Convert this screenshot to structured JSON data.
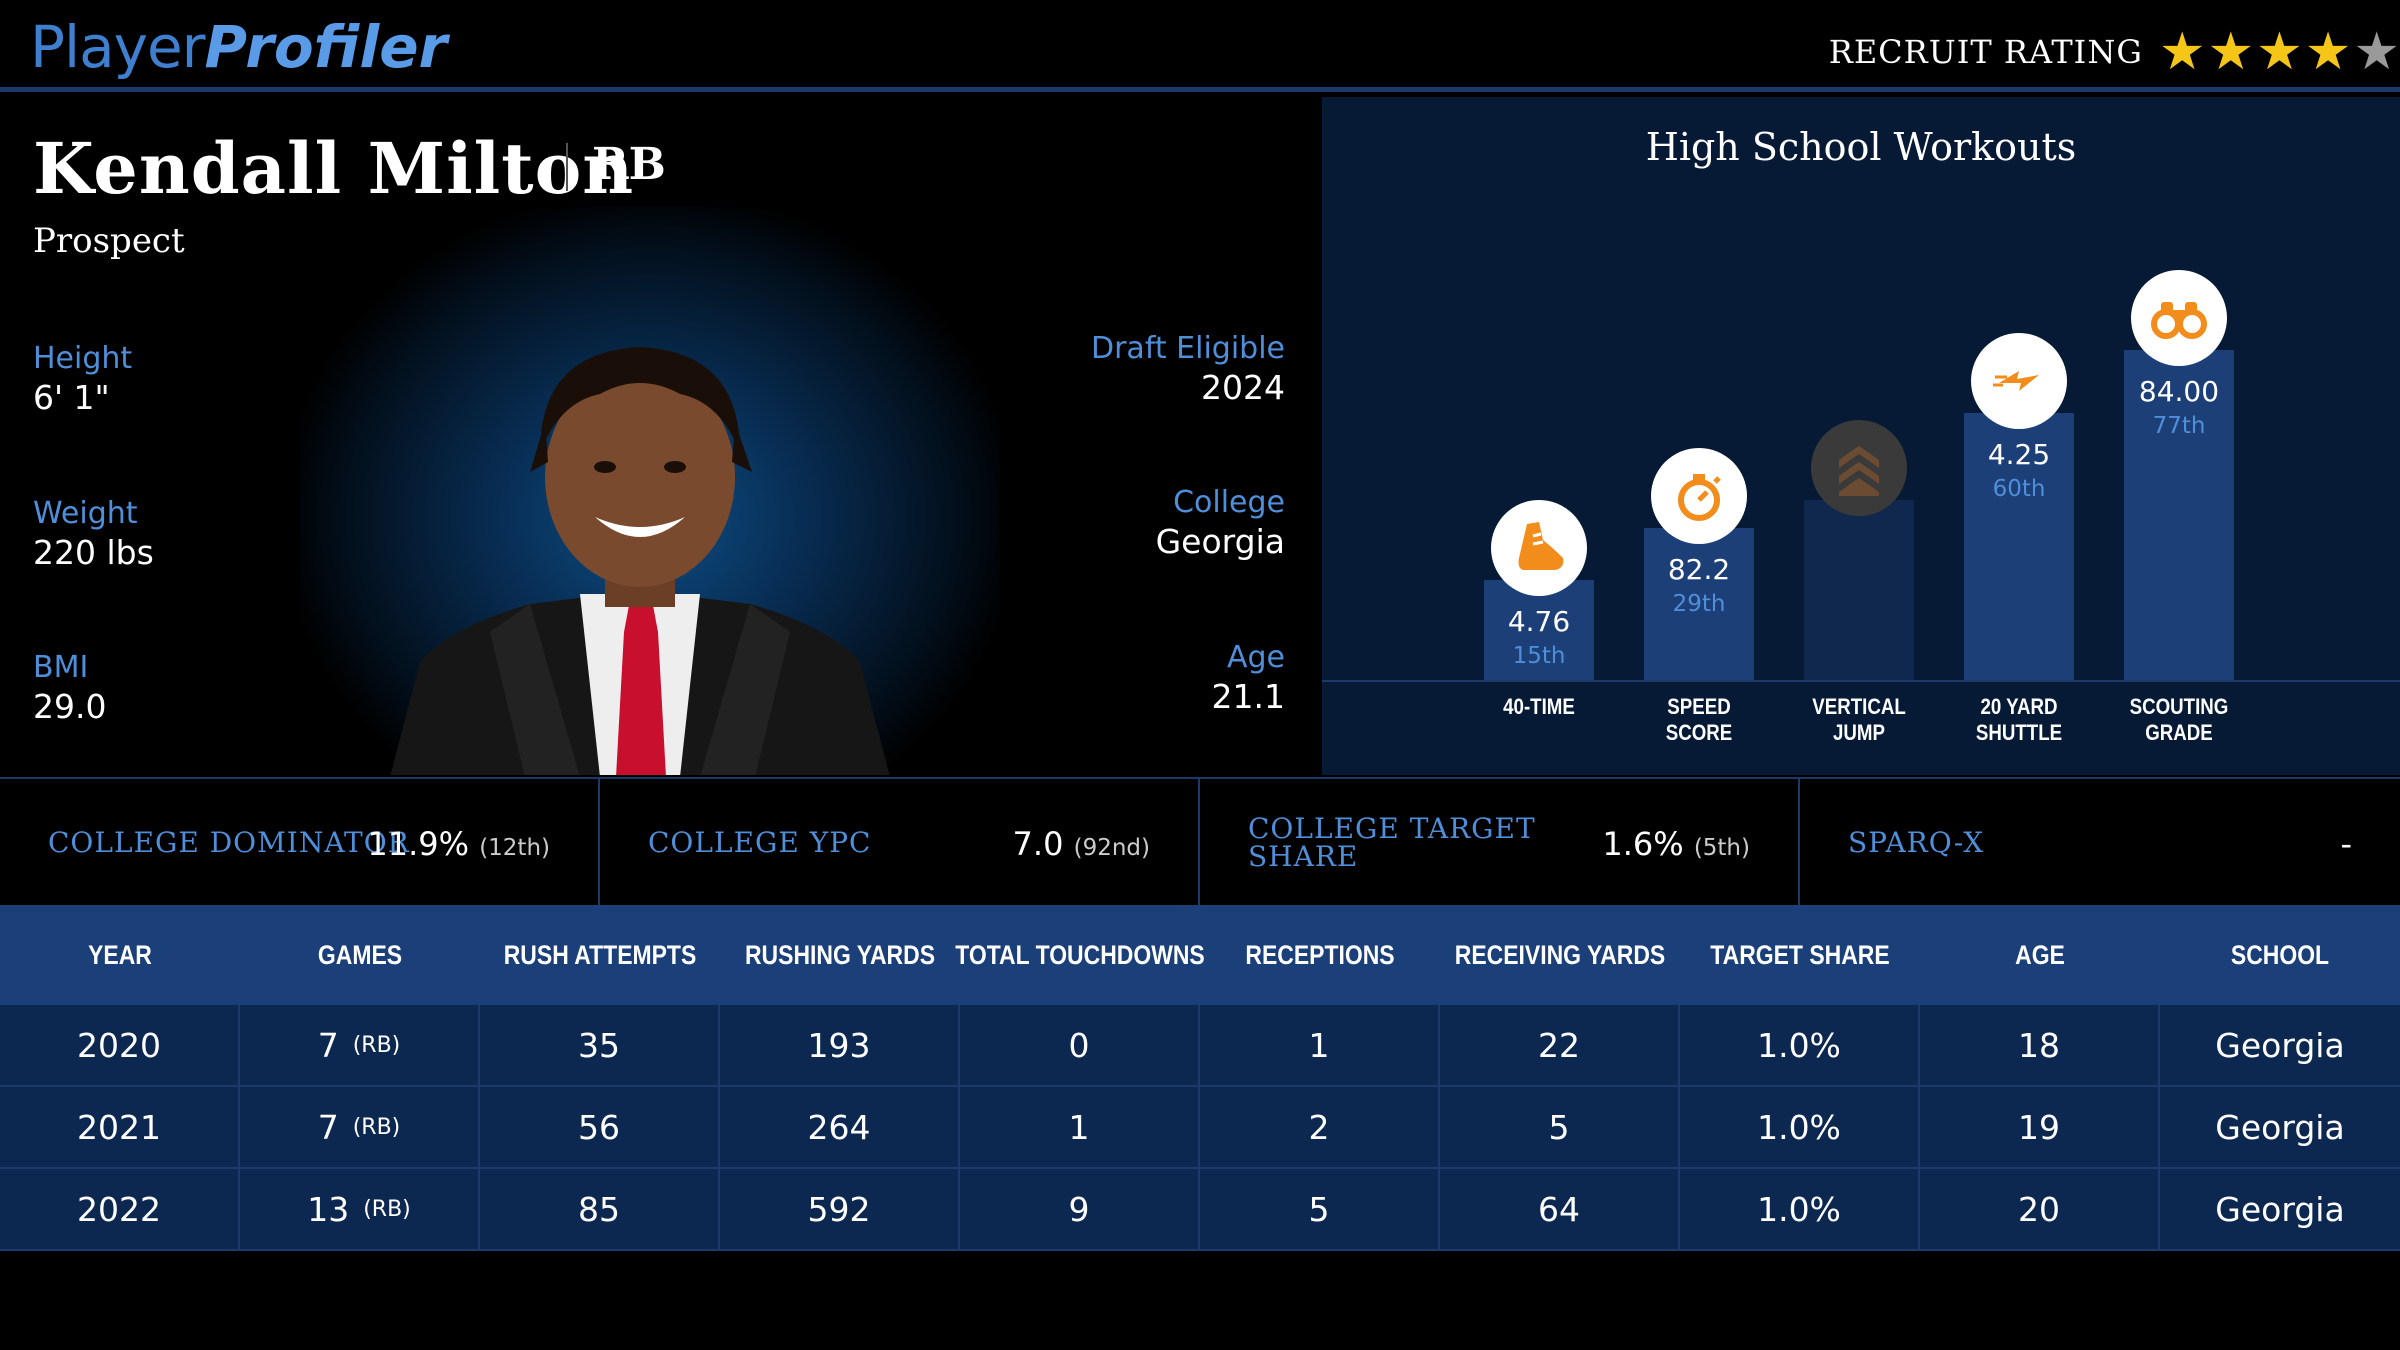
{
  "header": {
    "logo_part1": "Player",
    "logo_part2": "Profiler",
    "recruit_label": "RECRUIT RATING",
    "recruit_stars": 4,
    "recruit_stars_max": 5
  },
  "player": {
    "name": "Kendall Milton",
    "position": "RB",
    "status": "Prospect",
    "height_label": "Height",
    "height": "6' 1\"",
    "weight_label": "Weight",
    "weight": "220 lbs",
    "bmi_label": "BMI",
    "bmi": "29.0",
    "draft_label": "Draft Eligible",
    "draft": "2024",
    "college_label": "College",
    "college": "Georgia",
    "age_label": "Age",
    "age": "21.1"
  },
  "workouts": {
    "title": "High School Workouts",
    "items": [
      {
        "label1": "40-TIME",
        "label2": "",
        "value": "4.76",
        "pct": "15th",
        "percentile": 15,
        "icon": "shoe-icon"
      },
      {
        "label1": "SPEED",
        "label2": "SCORE",
        "value": "82.2",
        "pct": "29th",
        "percentile": 29,
        "icon": "stopwatch-icon"
      },
      {
        "label1": "VERTICAL",
        "label2": "JUMP",
        "value": "",
        "pct": "",
        "percentile": 0,
        "icon": "chevrons-up-icon"
      },
      {
        "label1": "20 YARD",
        "label2": "SHUTTLE",
        "value": "4.25",
        "pct": "60th",
        "percentile": 60,
        "icon": "lightning-icon"
      },
      {
        "label1": "SCOUTING",
        "label2": "GRADE",
        "value": "84.00",
        "pct": "77th",
        "percentile": 77,
        "icon": "binoculars-icon"
      }
    ]
  },
  "metrics": [
    {
      "label1": "COLLEGE DOMINATOR",
      "label2": "",
      "value": "11.9%",
      "rank": "(12th)"
    },
    {
      "label1": "COLLEGE YPC",
      "label2": "",
      "value": "7.0",
      "rank": "(92nd)"
    },
    {
      "label1": "COLLEGE TARGET",
      "label2": "SHARE",
      "value": "1.6%",
      "rank": "(5th)"
    },
    {
      "label1": "SPARQ-X",
      "label2": "",
      "value": "-",
      "rank": ""
    }
  ],
  "table": {
    "headers": [
      "YEAR",
      "GAMES",
      "RUSH ATTEMPTS",
      "RUSHING YARDS",
      "TOTAL TOUCHDOWNS",
      "RECEPTIONS",
      "RECEIVING YARDS",
      "TARGET SHARE",
      "AGE",
      "SCHOOL"
    ],
    "rows": [
      {
        "year": "2020",
        "games": "7",
        "pos": "(RB)",
        "rush_att": "35",
        "rush_yds": "193",
        "tds": "0",
        "rec": "1",
        "rec_yds": "22",
        "tgt": "1.0%",
        "age": "18",
        "school": "Georgia"
      },
      {
        "year": "2021",
        "games": "7",
        "pos": "(RB)",
        "rush_att": "56",
        "rush_yds": "264",
        "tds": "1",
        "rec": "2",
        "rec_yds": "5",
        "tgt": "1.0%",
        "age": "19",
        "school": "Georgia"
      },
      {
        "year": "2022",
        "games": "13",
        "pos": "(RB)",
        "rush_att": "85",
        "rush_yds": "592",
        "tds": "9",
        "rec": "5",
        "rec_yds": "64",
        "tgt": "1.0%",
        "age": "20",
        "school": "Georgia"
      }
    ]
  }
}
